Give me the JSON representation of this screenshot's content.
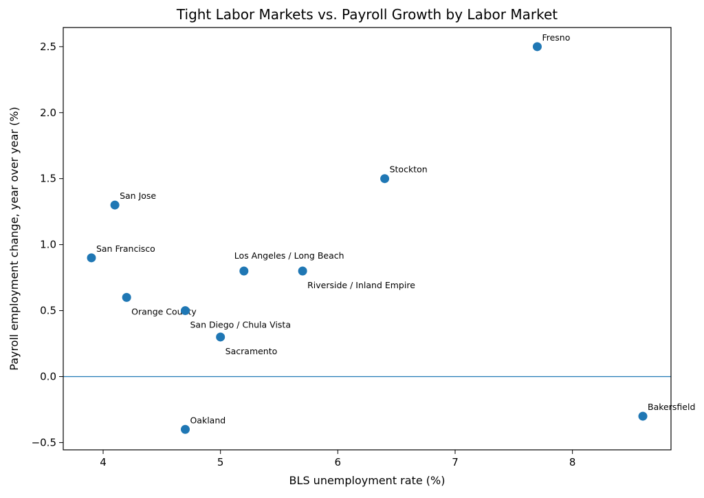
{
  "chart_data": {
    "type": "scatter",
    "title": "Tight Labor Markets vs. Payroll Growth by Labor Market",
    "xlabel": "BLS unemployment rate (%)",
    "ylabel": "Payroll employment change, year over year (%)",
    "xlim": [
      3.66,
      8.84
    ],
    "ylim": [
      -0.555,
      2.645
    ],
    "xticks": [
      4,
      5,
      6,
      7,
      8
    ],
    "yticks": [
      -0.5,
      0.0,
      0.5,
      1.0,
      1.5,
      2.0,
      2.5
    ],
    "xtick_labels": [
      "4",
      "5",
      "6",
      "7",
      "8"
    ],
    "ytick_labels": [
      "−0.5",
      "0.0",
      "0.5",
      "1.0",
      "1.5",
      "2.0",
      "2.5"
    ],
    "grid": false,
    "reference_line_y": 0,
    "point_color": "#1f77b4",
    "line_color": "#1f77b4",
    "points": [
      {
        "label": "Fresno",
        "x": 7.7,
        "y": 2.5,
        "label_pos": "above-right"
      },
      {
        "label": "Stockton",
        "x": 6.4,
        "y": 1.5,
        "label_pos": "above-right"
      },
      {
        "label": "San Jose",
        "x": 4.1,
        "y": 1.3,
        "label_pos": "above-right"
      },
      {
        "label": "San Francisco",
        "x": 3.9,
        "y": 0.9,
        "label_pos": "above-right"
      },
      {
        "label": "Los Angeles / Long Beach",
        "x": 5.2,
        "y": 0.8,
        "label_pos": "above-left"
      },
      {
        "label": "Riverside / Inland Empire",
        "x": 5.7,
        "y": 0.8,
        "label_pos": "below-right"
      },
      {
        "label": "Orange County",
        "x": 4.2,
        "y": 0.6,
        "label_pos": "below-right"
      },
      {
        "label": "San Diego / Chula Vista",
        "x": 4.7,
        "y": 0.5,
        "label_pos": "below-right"
      },
      {
        "label": "Sacramento",
        "x": 5.0,
        "y": 0.3,
        "label_pos": "below-right"
      },
      {
        "label": "Oakland",
        "x": 4.7,
        "y": -0.4,
        "label_pos": "above-right"
      },
      {
        "label": "Bakersfield",
        "x": 8.6,
        "y": -0.3,
        "label_pos": "above-right"
      }
    ]
  }
}
